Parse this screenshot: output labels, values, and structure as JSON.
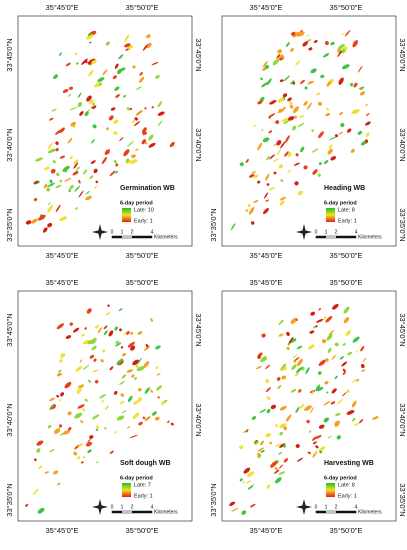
{
  "panels": [
    {
      "title": "Germination WB",
      "legend_title": "6-day period",
      "late": "Late: 10",
      "early": "Early: 1",
      "top_labels": [
        "35°45'0\"E",
        "35°50'0\"E"
      ],
      "bottom_labels": [
        "35°45'0\"E",
        "35°50'0\"E"
      ],
      "left_labels": [
        "33°45'0\"N",
        "33°40'0\"N",
        "33°35'0\"N"
      ],
      "right_labels": [
        "33°45'0\"N",
        "33°40'0\"N"
      ],
      "scale": [
        "0",
        "1",
        "2",
        "4"
      ],
      "scale_unit": "Kilometers"
    },
    {
      "title": "Heading WB",
      "legend_title": "6-day period",
      "late": "Late: 8",
      "early": "Early: 1",
      "top_labels": [
        "35°45'0\"E",
        "35°50'0\"E"
      ],
      "bottom_labels": [
        "35°45'0\"E",
        "35°50'0\"E"
      ],
      "left_labels": [
        "33°35'0\"N"
      ],
      "right_labels": [
        "33°45'0\"N",
        "33°40'0\"N",
        "33°35'0\"N"
      ],
      "scale": [
        "0",
        "1",
        "2",
        "4"
      ],
      "scale_unit": "Kilometers"
    },
    {
      "title": "Soft dough WB",
      "legend_title": "6-day period",
      "late": "Late: 7",
      "early": "Early: 1",
      "top_labels": [
        "35°45'0\"E",
        "35°50'0\"E"
      ],
      "bottom_labels": [
        "35°45'0\"E",
        "35°50'0\"E"
      ],
      "left_labels": [
        "33°45'0\"N",
        "33°40'0\"N",
        "33°35'0\"N"
      ],
      "right_labels": [
        "33°45'0\"N",
        "33°40'0\"N"
      ],
      "scale": [
        "0",
        "1",
        "2",
        "4"
      ],
      "scale_unit": "Kilometers"
    },
    {
      "title": "Harvesting WB",
      "legend_title": "6-day period",
      "late": "Late: 8",
      "early": "Early: 1",
      "top_labels": [
        "35°45'0\"E",
        "35°50'0\"E"
      ],
      "bottom_labels": [
        "35°45'0\"E",
        "35°50'0\"E"
      ],
      "left_labels": [
        "33°35'0\"N"
      ],
      "right_labels": [
        "33°45'0\"N",
        "33°40'0\"N",
        "33°35'0\"N"
      ],
      "scale": [
        "0",
        "1",
        "2",
        "4"
      ],
      "scale_unit": "Kilometers"
    }
  ]
}
